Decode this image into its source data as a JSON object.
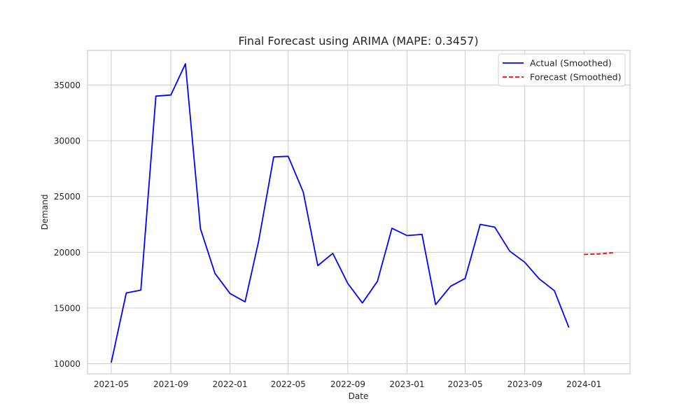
{
  "chart_data": {
    "type": "line",
    "title": "Final Forecast using ARIMA (MAPE: 0.3457)",
    "xlabel": "Date",
    "ylabel": "Demand",
    "x_ticks": [
      "2021-05",
      "2021-09",
      "2022-01",
      "2022-05",
      "2022-09",
      "2023-01",
      "2023-05",
      "2023-09",
      "2024-01"
    ],
    "y_ticks": [
      10000,
      15000,
      20000,
      25000,
      30000,
      35000
    ],
    "xlim": [
      "2021-03-13",
      "2024-04-05"
    ],
    "ylim": [
      9100,
      38100
    ],
    "grid": true,
    "legend_position": "top-right",
    "series": [
      {
        "name": "Actual (Smoothed)",
        "color": "#0000ff",
        "dash": "solid",
        "points": [
          [
            "2021-05-01",
            10100
          ],
          [
            "2021-06-01",
            16350
          ],
          [
            "2021-07-01",
            16600
          ],
          [
            "2021-08-01",
            34000
          ],
          [
            "2021-09-01",
            34100
          ],
          [
            "2021-10-01",
            36900
          ],
          [
            "2021-11-01",
            22100
          ],
          [
            "2021-12-01",
            18100
          ],
          [
            "2022-01-01",
            16300
          ],
          [
            "2022-02-01",
            15550
          ],
          [
            "2022-03-01",
            21000
          ],
          [
            "2022-04-01",
            28550
          ],
          [
            "2022-05-01",
            28600
          ],
          [
            "2022-06-01",
            25400
          ],
          [
            "2022-07-01",
            18800
          ],
          [
            "2022-08-01",
            19900
          ],
          [
            "2022-09-01",
            17200
          ],
          [
            "2022-10-01",
            15450
          ],
          [
            "2022-11-01",
            17400
          ],
          [
            "2022-12-01",
            22150
          ],
          [
            "2023-01-01",
            21500
          ],
          [
            "2023-02-01",
            21600
          ],
          [
            "2023-03-01",
            15300
          ],
          [
            "2023-04-01",
            16950
          ],
          [
            "2023-05-01",
            17650
          ],
          [
            "2023-06-01",
            22500
          ],
          [
            "2023-07-01",
            22250
          ],
          [
            "2023-08-01",
            20100
          ],
          [
            "2023-09-01",
            19100
          ],
          [
            "2023-10-01",
            17600
          ],
          [
            "2023-11-01",
            16550
          ],
          [
            "2023-12-01",
            13250
          ]
        ]
      },
      {
        "name": "Forecast (Smoothed)",
        "color": "#ff0000",
        "dash": "dashed",
        "points": [
          [
            "2024-01-01",
            19800
          ],
          [
            "2024-02-01",
            19850
          ],
          [
            "2024-03-01",
            19950
          ]
        ]
      }
    ]
  }
}
